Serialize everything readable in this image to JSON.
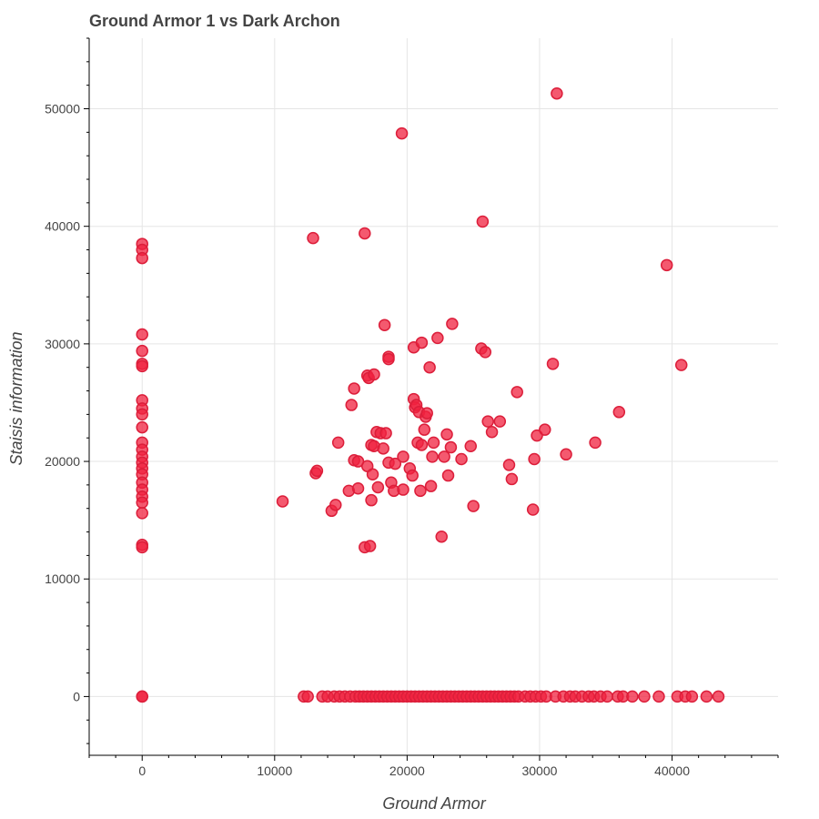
{
  "chart_data": {
    "type": "scatter",
    "title": "Ground Armor 1 vs Dark Archon",
    "xlabel": "Ground Armor",
    "ylabel": "Staisis information",
    "xlim": [
      -4000,
      48000
    ],
    "ylim": [
      -5000,
      56000
    ],
    "x_ticks": [
      0,
      10000,
      20000,
      30000,
      40000
    ],
    "y_ticks": [
      0,
      10000,
      20000,
      30000,
      40000,
      50000
    ],
    "grid": true,
    "marker_fill": "#f0213f",
    "marker_stroke": "#dc1e3a",
    "series": [
      {
        "points": [
          [
            0,
            38500
          ],
          [
            0,
            38000
          ],
          [
            0,
            37300
          ],
          [
            0,
            30800
          ],
          [
            0,
            29400
          ],
          [
            0,
            28300
          ],
          [
            0,
            28100
          ],
          [
            0,
            25200
          ],
          [
            0,
            24500
          ],
          [
            0,
            24000
          ],
          [
            0,
            22900
          ],
          [
            0,
            21600
          ],
          [
            0,
            21000
          ],
          [
            0,
            20400
          ],
          [
            0,
            19900
          ],
          [
            0,
            19400
          ],
          [
            0,
            18900
          ],
          [
            0,
            18200
          ],
          [
            0,
            17600
          ],
          [
            0,
            17000
          ],
          [
            0,
            16500
          ],
          [
            0,
            15600
          ],
          [
            0,
            12900
          ],
          [
            0,
            12700
          ],
          [
            0,
            0
          ],
          [
            0,
            0
          ],
          [
            10600,
            16600
          ],
          [
            12900,
            39000
          ],
          [
            13100,
            19000
          ],
          [
            13200,
            19200
          ],
          [
            14300,
            15800
          ],
          [
            14600,
            16300
          ],
          [
            14800,
            21600
          ],
          [
            15600,
            17500
          ],
          [
            15800,
            24800
          ],
          [
            16000,
            26200
          ],
          [
            16000,
            20100
          ],
          [
            16300,
            17700
          ],
          [
            16300,
            20000
          ],
          [
            16800,
            39400
          ],
          [
            16800,
            12700
          ],
          [
            17000,
            19600
          ],
          [
            17000,
            27300
          ],
          [
            17100,
            27100
          ],
          [
            17200,
            12800
          ],
          [
            17300,
            16700
          ],
          [
            17300,
            21400
          ],
          [
            17400,
            18900
          ],
          [
            17500,
            27400
          ],
          [
            17500,
            21300
          ],
          [
            17700,
            22500
          ],
          [
            17800,
            17800
          ],
          [
            18000,
            22400
          ],
          [
            18200,
            21100
          ],
          [
            18300,
            31600
          ],
          [
            18400,
            22400
          ],
          [
            18600,
            28900
          ],
          [
            18600,
            28700
          ],
          [
            18600,
            19900
          ],
          [
            18800,
            18200
          ],
          [
            19000,
            17500
          ],
          [
            19100,
            19800
          ],
          [
            19600,
            47900
          ],
          [
            19700,
            17600
          ],
          [
            19700,
            20400
          ],
          [
            20200,
            19400
          ],
          [
            20400,
            18800
          ],
          [
            20500,
            25300
          ],
          [
            20500,
            29700
          ],
          [
            20600,
            24600
          ],
          [
            20700,
            24800
          ],
          [
            20800,
            21600
          ],
          [
            20900,
            24200
          ],
          [
            21000,
            17500
          ],
          [
            21100,
            21400
          ],
          [
            21100,
            30100
          ],
          [
            21300,
            22700
          ],
          [
            21400,
            23800
          ],
          [
            21500,
            24100
          ],
          [
            21700,
            28000
          ],
          [
            21800,
            17900
          ],
          [
            21900,
            20400
          ],
          [
            22000,
            21600
          ],
          [
            22300,
            30500
          ],
          [
            22600,
            13600
          ],
          [
            22800,
            20400
          ],
          [
            23000,
            22300
          ],
          [
            23100,
            18800
          ],
          [
            23300,
            21200
          ],
          [
            23400,
            31700
          ],
          [
            24100,
            20200
          ],
          [
            24800,
            21300
          ],
          [
            25000,
            16200
          ],
          [
            25600,
            29600
          ],
          [
            25700,
            40400
          ],
          [
            25900,
            29300
          ],
          [
            26100,
            23400
          ],
          [
            26400,
            22500
          ],
          [
            27000,
            23400
          ],
          [
            27700,
            19700
          ],
          [
            27900,
            18500
          ],
          [
            28300,
            25900
          ],
          [
            29500,
            15900
          ],
          [
            29600,
            20200
          ],
          [
            29800,
            22200
          ],
          [
            30400,
            22700
          ],
          [
            31000,
            28300
          ],
          [
            31300,
            51300
          ],
          [
            32000,
            20600
          ],
          [
            34200,
            21600
          ],
          [
            36000,
            24200
          ],
          [
            39600,
            36700
          ],
          [
            40700,
            28200
          ],
          [
            12200,
            0
          ],
          [
            12500,
            0
          ],
          [
            13600,
            0
          ],
          [
            14000,
            0
          ],
          [
            14500,
            0
          ],
          [
            14900,
            0
          ],
          [
            15300,
            0
          ],
          [
            15700,
            0
          ],
          [
            16100,
            0
          ],
          [
            16400,
            0
          ],
          [
            16700,
            0
          ],
          [
            17000,
            0
          ],
          [
            17300,
            0
          ],
          [
            17600,
            0
          ],
          [
            17900,
            0
          ],
          [
            18200,
            0
          ],
          [
            18500,
            0
          ],
          [
            18800,
            0
          ],
          [
            19100,
            0
          ],
          [
            19400,
            0
          ],
          [
            19700,
            0
          ],
          [
            20000,
            0
          ],
          [
            20300,
            0
          ],
          [
            20600,
            0
          ],
          [
            20900,
            0
          ],
          [
            21200,
            0
          ],
          [
            21500,
            0
          ],
          [
            21800,
            0
          ],
          [
            22100,
            0
          ],
          [
            22400,
            0
          ],
          [
            22700,
            0
          ],
          [
            23000,
            0
          ],
          [
            23300,
            0
          ],
          [
            23600,
            0
          ],
          [
            23900,
            0
          ],
          [
            24200,
            0
          ],
          [
            24500,
            0
          ],
          [
            24800,
            0
          ],
          [
            25100,
            0
          ],
          [
            25400,
            0
          ],
          [
            25700,
            0
          ],
          [
            26000,
            0
          ],
          [
            26300,
            0
          ],
          [
            26600,
            0
          ],
          [
            26900,
            0
          ],
          [
            27200,
            0
          ],
          [
            27500,
            0
          ],
          [
            27800,
            0
          ],
          [
            28100,
            0
          ],
          [
            28400,
            0
          ],
          [
            28900,
            0
          ],
          [
            29300,
            0
          ],
          [
            29700,
            0
          ],
          [
            30100,
            0
          ],
          [
            30500,
            0
          ],
          [
            31200,
            0
          ],
          [
            31800,
            0
          ],
          [
            32300,
            0
          ],
          [
            32700,
            0
          ],
          [
            33200,
            0
          ],
          [
            33700,
            0
          ],
          [
            34100,
            0
          ],
          [
            34600,
            0
          ],
          [
            35100,
            0
          ],
          [
            35900,
            0
          ],
          [
            36300,
            0
          ],
          [
            37000,
            0
          ],
          [
            37900,
            0
          ],
          [
            39000,
            0
          ],
          [
            40400,
            0
          ],
          [
            41000,
            0
          ],
          [
            41500,
            0
          ],
          [
            42600,
            0
          ],
          [
            43500,
            0
          ]
        ]
      }
    ]
  }
}
